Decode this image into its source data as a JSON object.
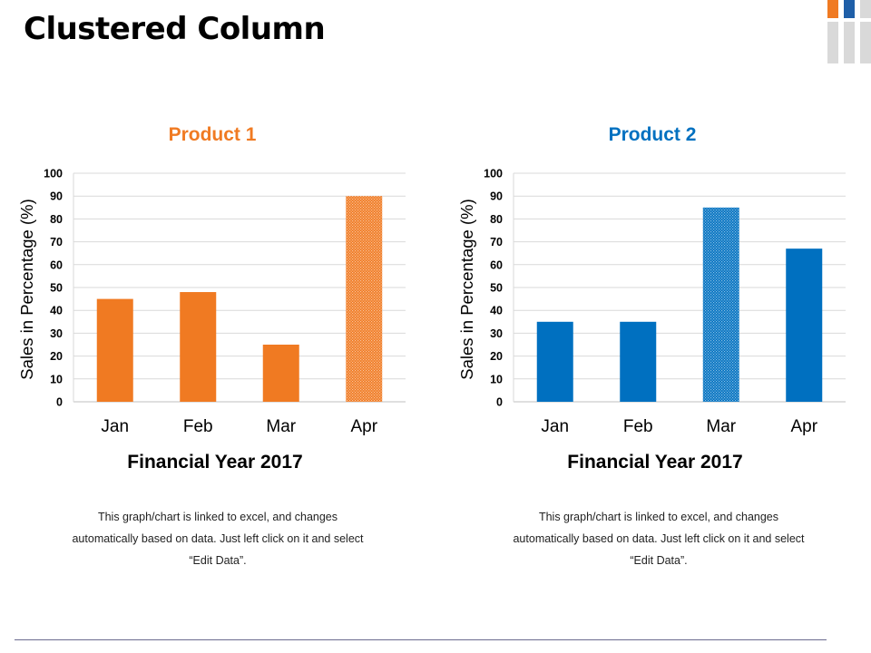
{
  "page": {
    "title": "Clustered Column",
    "accent_orange": "#F07A22",
    "accent_blue": "#0070C0",
    "grey": "#D9D9D9"
  },
  "chart_data": [
    {
      "type": "bar",
      "title": "Product 1",
      "title_color": "#F07A22",
      "bar_color": "#F07A22",
      "categories": [
        "Jan",
        "Feb",
        "Mar",
        "Apr"
      ],
      "values": [
        45,
        48,
        25,
        90
      ],
      "highlighted": [
        "Apr"
      ],
      "ylim": [
        0,
        100
      ],
      "yticks": [
        "0",
        "10",
        "20",
        "30",
        "40",
        "50",
        "60",
        "70",
        "80",
        "90",
        "100"
      ],
      "xlabel": "Financial Year 2017",
      "ylabel": "Sales in Percentage (%)",
      "grid": true,
      "note": "This graph/chart is linked to excel, and changes automatically based on data. Just left click on it and select “Edit Data”."
    },
    {
      "type": "bar",
      "title": "Product 2",
      "title_color": "#0070C0",
      "bar_color": "#0070C0",
      "categories": [
        "Jan",
        "Feb",
        "Mar",
        "Apr"
      ],
      "values": [
        35,
        35,
        85,
        67
      ],
      "highlighted": [
        "Mar"
      ],
      "ylim": [
        0,
        100
      ],
      "yticks": [
        "0",
        "10",
        "20",
        "30",
        "40",
        "50",
        "60",
        "70",
        "80",
        "90",
        "100"
      ],
      "xlabel": "Financial Year 2017",
      "ylabel": "Sales in Percentage (%)",
      "grid": true,
      "note": "This graph/chart is linked to excel, and changes automatically based on data. Just left click on it and select “Edit Data”."
    }
  ]
}
